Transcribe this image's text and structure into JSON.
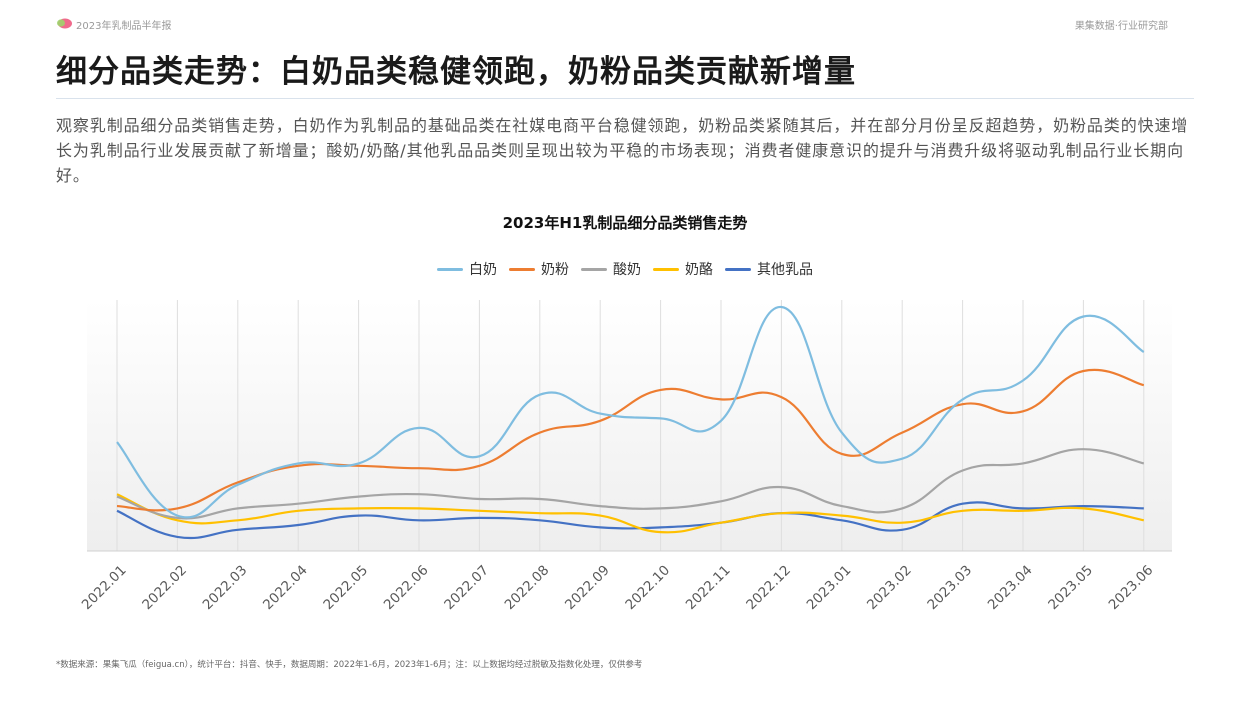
{
  "header": {
    "report_name": "2023年乳制品半年报",
    "brand": "果集数据·行业研究部"
  },
  "page_title": "细分品类走势：白奶品类稳健领跑，奶粉品类贡献新增量",
  "intro": "观察乳制品细分品类销售走势，白奶作为乳制品的基础品类在社媒电商平台稳健领跑，奶粉品类紧随其后，并在部分月份呈反超趋势，奶粉品类的快速增长为乳制品行业发展贡献了新增量；酸奶/奶酪/其他乳品品类则呈现出较为平稳的市场表现；消费者健康意识的提升与消费升级将驱动乳制品行业长期向好。",
  "footnote": "*数据来源：果集飞瓜（feigua.cn），统计平台：抖音、快手，数据周期：2022年1-6月，2023年1-6月；注：以上数据均经过脱敏及指数化处理，仅供参考",
  "colors": {
    "accent_rule": "#d9e2ec"
  },
  "chart_data": {
    "type": "line",
    "title": "2023年H1乳制品细分品类销售走势",
    "xlabel": "",
    "ylabel": "",
    "ylim": [
      0,
      100
    ],
    "grid": "vertical",
    "legend_position": "top-center",
    "categories": [
      "2022.01",
      "2022.02",
      "2022.03",
      "2022.04",
      "2022.05",
      "2022.06",
      "2022.07",
      "2022.08",
      "2022.09",
      "2022.10",
      "2022.11",
      "2022.12",
      "2023.01",
      "2023.02",
      "2023.03",
      "2023.04",
      "2023.05",
      "2023.06"
    ],
    "series": [
      {
        "name": "白奶",
        "color": "#7fbde0",
        "values": [
          43,
          12,
          25,
          34,
          34,
          49,
          37,
          63,
          55,
          53,
          52,
          100,
          47,
          36,
          61,
          69,
          96,
          81
        ]
      },
      {
        "name": "奶粉",
        "color": "#ed7d31",
        "values": [
          16,
          15,
          26,
          33,
          33,
          32,
          33,
          47,
          52,
          65,
          61,
          62,
          38,
          47,
          59,
          56,
          73,
          67
        ]
      },
      {
        "name": "酸奶",
        "color": "#a5a5a5",
        "values": [
          20,
          11,
          15,
          17,
          20,
          21,
          19,
          19,
          16,
          15,
          18,
          24,
          16,
          15,
          31,
          34,
          40,
          34
        ]
      },
      {
        "name": "奶酪",
        "color": "#ffc000",
        "values": [
          21,
          10,
          10,
          14,
          15,
          15,
          14,
          13,
          12,
          5,
          9,
          13,
          12,
          9,
          14,
          14,
          15,
          10
        ]
      },
      {
        "name": "其他乳品",
        "color": "#4472c4",
        "values": [
          14,
          3,
          6,
          8,
          12,
          10,
          11,
          10,
          7,
          7,
          9,
          13,
          10,
          6,
          17,
          15,
          16,
          15
        ]
      }
    ]
  }
}
